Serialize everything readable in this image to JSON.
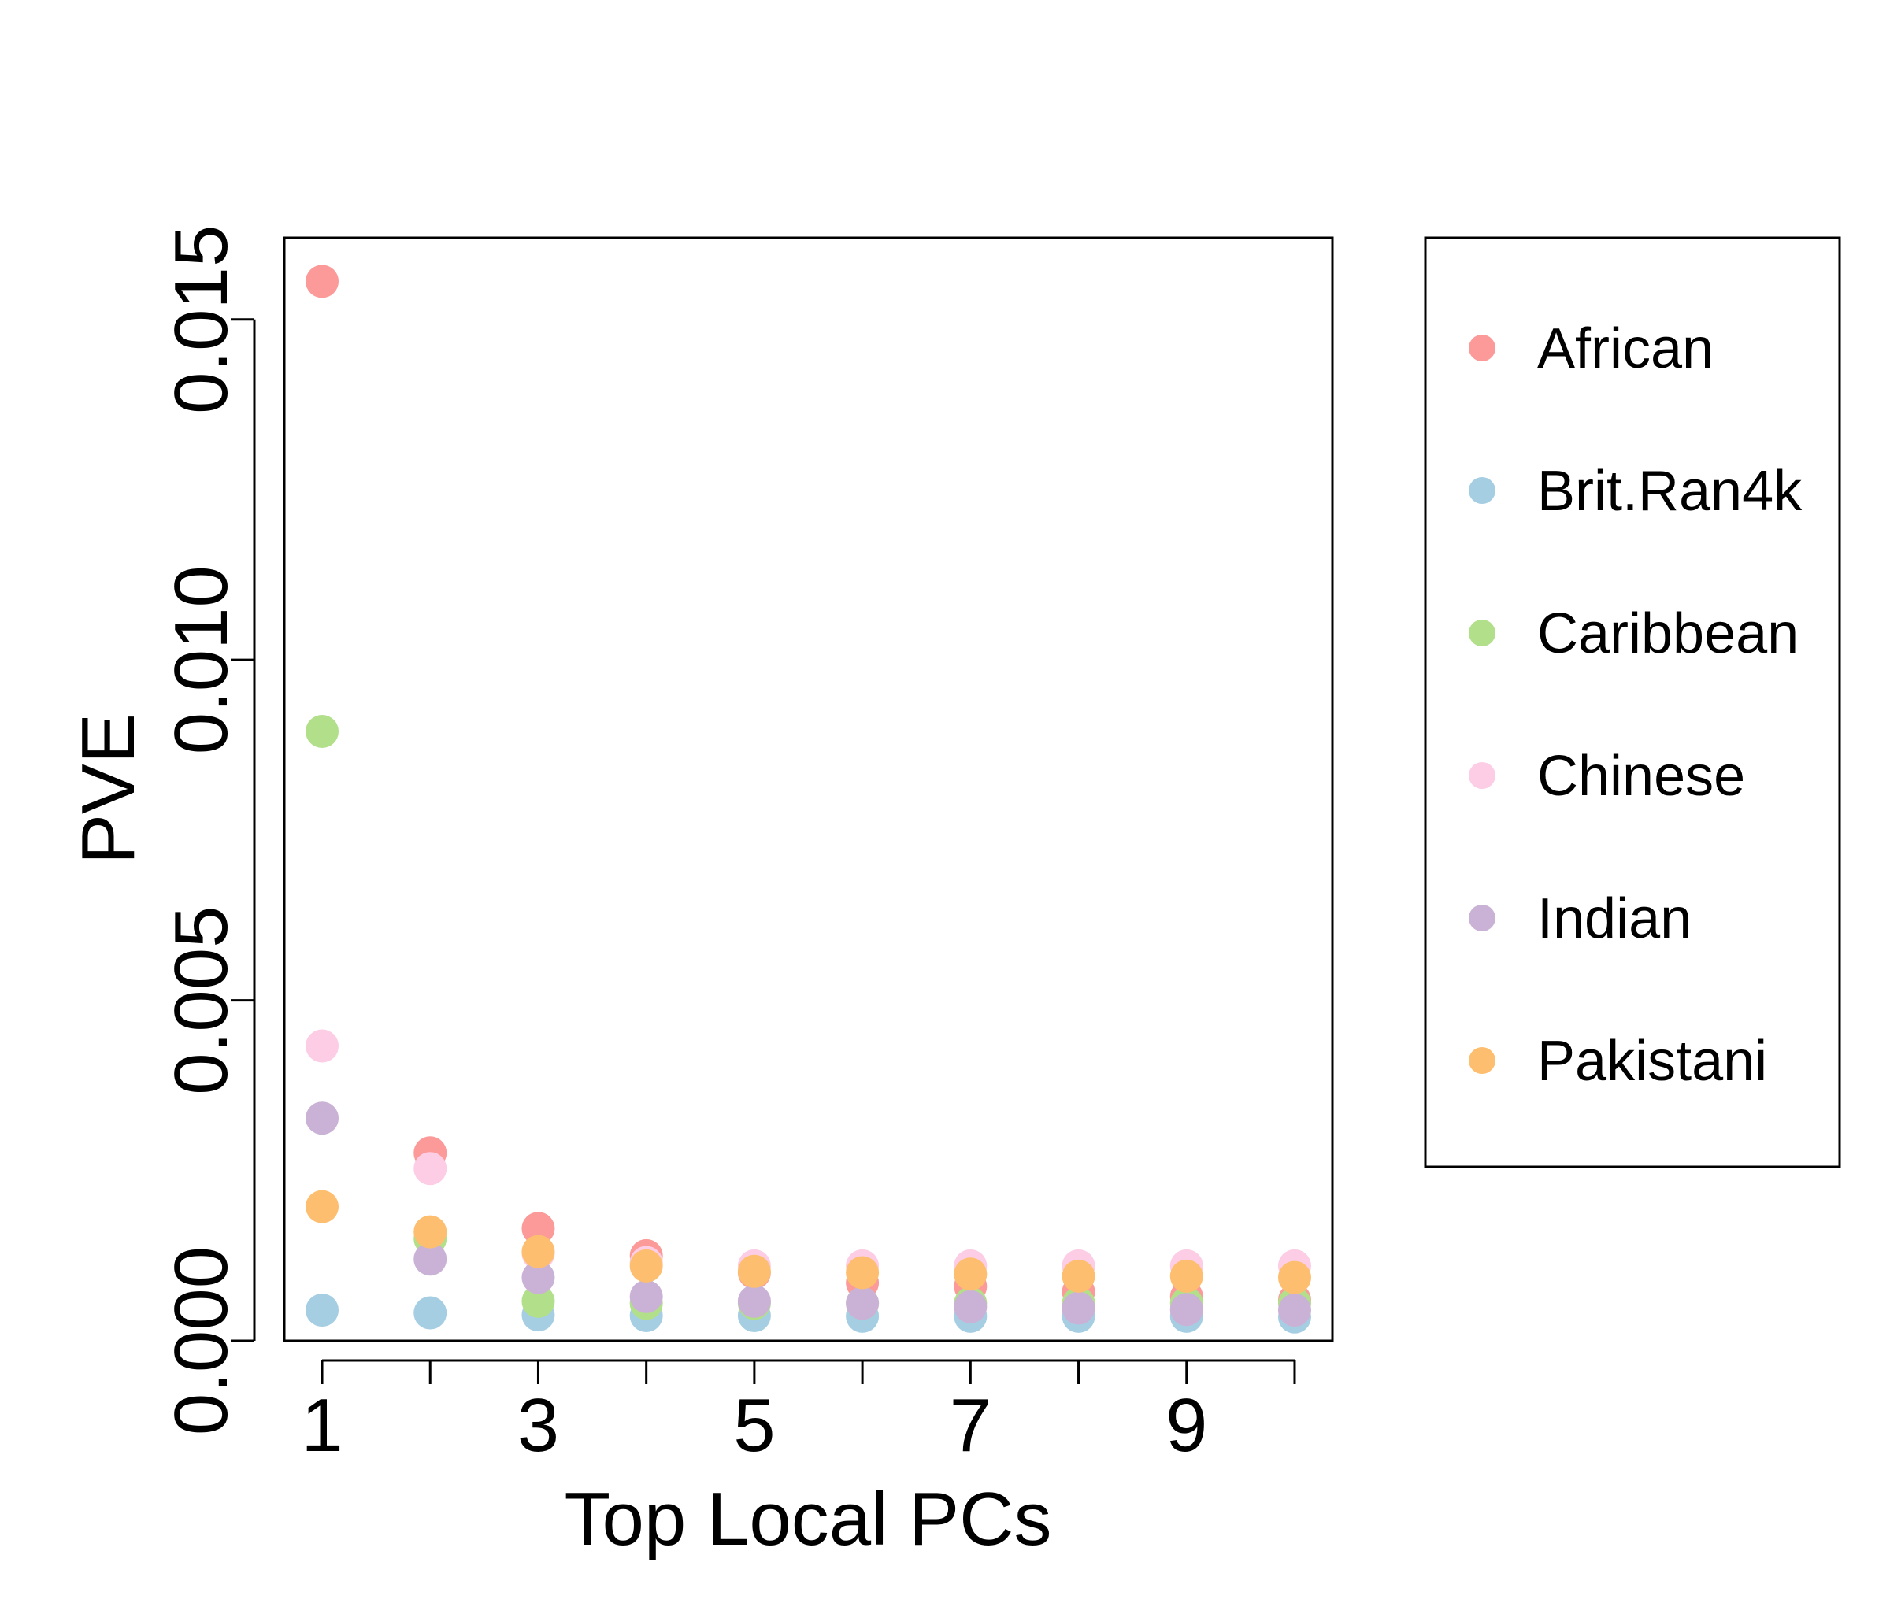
{
  "chart_data": {
    "type": "scatter",
    "xlabel": "Top Local PCs",
    "ylabel": "PVE",
    "xlim": [
      0.65,
      10.35
    ],
    "ylim": [
      0.0,
      0.0162
    ],
    "x_ticks": [
      1,
      3,
      5,
      7,
      9
    ],
    "y_ticks": [
      0.0,
      0.005,
      0.01,
      0.015
    ],
    "y_tick_labels": [
      "0.000",
      "0.005",
      "0.010",
      "0.015"
    ],
    "grid": false,
    "legend_position": "right",
    "x": [
      1,
      2,
      3,
      4,
      5,
      6,
      7,
      8,
      9,
      10
    ],
    "series": [
      {
        "name": "African",
        "color": "#FB9A99",
        "values": [
          0.01556,
          0.00276,
          0.00165,
          0.00125,
          0.001,
          0.00085,
          0.0008,
          0.00072,
          0.00065,
          0.0006
        ]
      },
      {
        "name": "Brit.Ran4k",
        "color": "#A6CEE3",
        "values": [
          0.00045,
          0.00041,
          0.00038,
          0.00037,
          0.00037,
          0.00036,
          0.00036,
          0.00036,
          0.00036,
          0.00035
        ]
      },
      {
        "name": "Caribbean",
        "color": "#B2DF8A",
        "values": [
          0.00895,
          0.0015,
          0.00058,
          0.00055,
          0.00055,
          0.00055,
          0.00055,
          0.00055,
          0.00055,
          0.00055
        ]
      },
      {
        "name": "Chinese",
        "color": "#FCCDE5",
        "values": [
          0.00433,
          0.00253,
          0.00128,
          0.00115,
          0.0011,
          0.0011,
          0.0011,
          0.0011,
          0.0011,
          0.0011
        ]
      },
      {
        "name": "Indian",
        "color": "#CAB2D6",
        "values": [
          0.00327,
          0.0012,
          0.00093,
          0.00065,
          0.00058,
          0.00055,
          0.0005,
          0.00048,
          0.00046,
          0.00045
        ]
      },
      {
        "name": "Pakistani",
        "color": "#FDBF6F",
        "values": [
          0.00197,
          0.0016,
          0.00131,
          0.0011,
          0.00102,
          0.001,
          0.00098,
          0.00095,
          0.00095,
          0.00093
        ]
      }
    ]
  }
}
